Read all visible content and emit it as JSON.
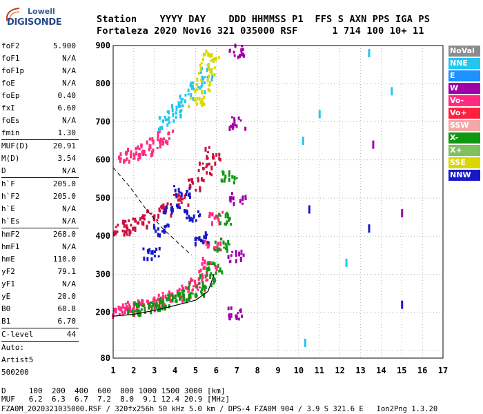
{
  "logo": {
    "line1": "Lowell",
    "line2": "DIGISONDE"
  },
  "header": {
    "row1": [
      "Station",
      "YYYY",
      "DAY",
      "DDD",
      "HHMMSS",
      "P1",
      "FFS",
      "S",
      "AXN",
      "PPS",
      "IGA",
      "PS"
    ],
    "row2": [
      "Fortaleza",
      "2020",
      "Nov16",
      "321",
      "035000",
      "RSF",
      "1",
      "714",
      "100",
      "10+",
      "11"
    ]
  },
  "params": [
    {
      "name": "foF2",
      "value": "5.900"
    },
    {
      "name": "foF1",
      "value": "N/A"
    },
    {
      "name": "foF1p",
      "value": "N/A"
    },
    {
      "name": "foE",
      "value": "N/A"
    },
    {
      "name": "foEp",
      "value": "0.40"
    },
    {
      "name": "fxI",
      "value": "6.60"
    },
    {
      "name": "foEs",
      "value": "N/A"
    },
    {
      "name": "fmin",
      "value": "1.30"
    },
    {
      "name": "MUF(D)",
      "value": "20.91"
    },
    {
      "name": "M(D)",
      "value": "3.54"
    },
    {
      "name": "D",
      "value": "N/A"
    },
    {
      "name": "h`F",
      "value": "205.0"
    },
    {
      "name": "h`F2",
      "value": "205.0"
    },
    {
      "name": "h`E",
      "value": "N/A"
    },
    {
      "name": "h`Es",
      "value": "N/A"
    },
    {
      "name": "hmF2",
      "value": "268.0"
    },
    {
      "name": "hmF1",
      "value": "N/A"
    },
    {
      "name": "hmE",
      "value": "110.0"
    },
    {
      "name": "yF2",
      "value": "79.1"
    },
    {
      "name": "yF1",
      "value": "N/A"
    },
    {
      "name": "yE",
      "value": "20.0"
    },
    {
      "name": "B0",
      "value": "60.8"
    },
    {
      "name": "B1",
      "value": "6.70"
    },
    {
      "name": "C-level",
      "value": "44"
    }
  ],
  "autoscaler": {
    "label": "Auto:",
    "name": "Artist5",
    "version": "500200"
  },
  "legend": [
    {
      "label": "NoVal",
      "color": "#8c8c8c"
    },
    {
      "label": "NNE",
      "color": "#22c6f0"
    },
    {
      "label": "E",
      "color": "#1e90ff"
    },
    {
      "label": "W",
      "color": "#a000a8"
    },
    {
      "label": "Vo-",
      "color": "#ff2a80"
    },
    {
      "label": "Vo+",
      "color": "#ff2040"
    },
    {
      "label": "SSW",
      "color": "#f4a8a8"
    },
    {
      "label": "X-",
      "color": "#109810"
    },
    {
      "label": "X+",
      "color": "#80c060"
    },
    {
      "label": "SSE",
      "color": "#d8d800"
    },
    {
      "label": "NNW",
      "color": "#1818c8"
    }
  ],
  "footer": {
    "line1": "D     100  200  400  600  800 1000 1500 3000 [km]",
    "line2": "MUF   6.2  6.3  6.7  7.2  8.0  9.1 12.4 20.9 [MHz]",
    "line3": "FZA0M_2020321035000.RSF / 320fx256h 50 kHz 5.0 km / DPS-4 FZA0M 904 / 3.9 S 321.6 E   Ion2Png 1.3.20"
  },
  "chart_data": {
    "type": "scatter",
    "title": "",
    "xlabel": "",
    "ylabel": "",
    "xlim": [
      1,
      17
    ],
    "ylim": [
      80,
      900
    ],
    "xticks": [
      1,
      2,
      3,
      4,
      5,
      6,
      7,
      8,
      9,
      10,
      11,
      12,
      13,
      14,
      15,
      16,
      17
    ],
    "yticks": [
      80,
      100,
      200,
      300,
      400,
      500,
      600,
      700,
      800,
      900
    ],
    "y_tick_labels": [
      "80",
      "",
      "200",
      "300",
      "400",
      "500",
      "600",
      "700",
      "800",
      "900"
    ],
    "grid": true,
    "series": [
      {
        "label": "O-trace",
        "color": "#ff2a80",
        "x": [
          1.3,
          1.6,
          2.0,
          2.5,
          3.0,
          3.5,
          4.0,
          4.5,
          5.0,
          5.3,
          5.6,
          5.8,
          5.9
        ],
        "y": [
          210,
          212,
          215,
          220,
          228,
          238,
          248,
          258,
          275,
          295,
          330,
          380,
          450
        ]
      },
      {
        "label": "X-trace",
        "color": "#109810",
        "x": [
          2.0,
          2.5,
          3.0,
          3.5,
          4.0,
          4.5,
          5.0,
          5.5,
          5.9,
          6.2,
          6.4,
          6.6
        ],
        "y": [
          212,
          216,
          222,
          230,
          240,
          250,
          262,
          285,
          320,
          380,
          450,
          560
        ]
      },
      {
        "label": "2nd hop",
        "color": "#cc1040",
        "x": [
          1.4,
          1.8,
          2.2,
          2.8,
          3.5,
          4.2,
          5.0,
          5.5,
          5.8
        ],
        "y": [
          420,
          428,
          438,
          455,
          475,
          500,
          540,
          580,
          620
        ]
      },
      {
        "label": "3rd hop",
        "color": "#ff2a80",
        "x": [
          1.6,
          2.0,
          2.5,
          3.0,
          3.5
        ],
        "y": [
          610,
          618,
          630,
          645,
          665
        ]
      },
      {
        "label": "Oblique NNE",
        "color": "#22c6f0",
        "x": [
          3.5,
          4.0,
          4.5,
          5.0,
          5.5
        ],
        "y": [
          700,
          730,
          760,
          790,
          830
        ]
      },
      {
        "label": "Oblique SSE",
        "color": "#d8d800",
        "x": [
          5.0,
          5.3,
          5.5,
          5.7
        ],
        "y": [
          760,
          800,
          840,
          880
        ]
      },
      {
        "label": "Spread NNW",
        "color": "#1818c8",
        "x": [
          2.8,
          3.3,
          3.8,
          4.3,
          4.8,
          5.2
        ],
        "y": [
          360,
          420,
          480,
          520,
          460,
          400
        ]
      },
      {
        "label": "W line 6.9 MHz",
        "color": "#a000a8",
        "x": [
          6.9,
          6.9,
          7.0,
          7.0,
          7.0
        ],
        "y": [
          200,
          350,
          500,
          700,
          890
        ]
      }
    ],
    "profile_line": {
      "x": [
        1.0,
        2.0,
        3.0,
        4.0,
        5.0,
        5.6,
        5.9
      ],
      "y": [
        190,
        195,
        205,
        218,
        232,
        255,
        300
      ]
    },
    "dashed_line": {
      "x": [
        1.0,
        1.8,
        2.6,
        3.4,
        4.2,
        4.8
      ],
      "y": [
        580,
        530,
        470,
        420,
        380,
        350
      ]
    },
    "scattered_echoes": [
      {
        "color": "#22c6f0",
        "x": 10.2,
        "y": 650
      },
      {
        "color": "#1818c8",
        "x": 10.5,
        "y": 470
      },
      {
        "color": "#22c6f0",
        "x": 11.0,
        "y": 720
      },
      {
        "color": "#22c6f0",
        "x": 12.3,
        "y": 330
      },
      {
        "color": "#1818c8",
        "x": 13.4,
        "y": 420
      },
      {
        "color": "#22c6f0",
        "x": 13.4,
        "y": 880
      },
      {
        "color": "#a000a8",
        "x": 13.6,
        "y": 640
      },
      {
        "color": "#22c6f0",
        "x": 14.5,
        "y": 780
      },
      {
        "color": "#a000a8",
        "x": 15.0,
        "y": 460
      },
      {
        "color": "#1818c8",
        "x": 15.0,
        "y": 220
      },
      {
        "color": "#22c6f0",
        "x": 10.3,
        "y": 120
      }
    ]
  }
}
